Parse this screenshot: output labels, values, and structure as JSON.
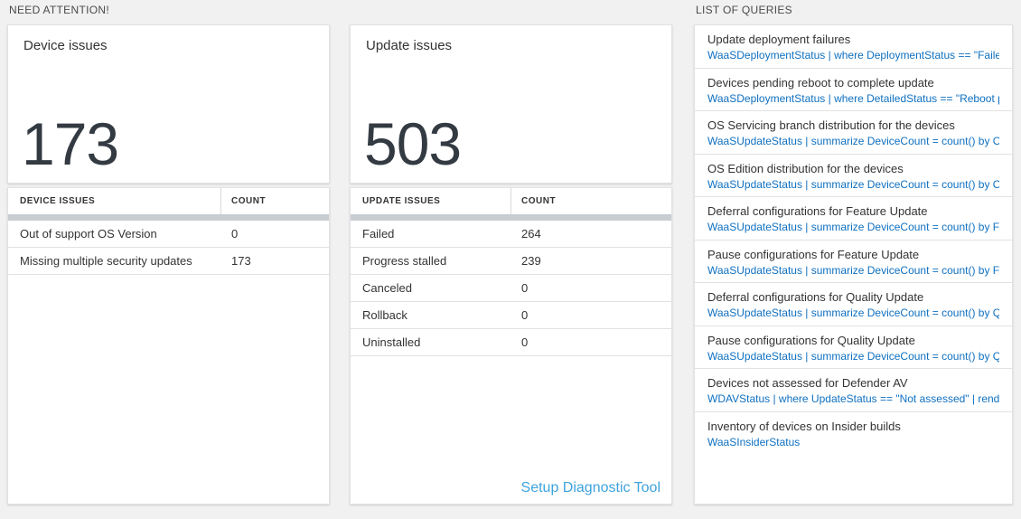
{
  "sections": {
    "need_attention": "NEED ATTENTION!",
    "list_of_queries": "LIST OF QUERIES"
  },
  "device_card": {
    "title": "Device issues",
    "count": "173"
  },
  "update_card": {
    "title": "Update issues",
    "count": "503"
  },
  "device_table": {
    "headers": [
      "DEVICE ISSUES",
      "COUNT"
    ],
    "rows": [
      {
        "label": "Out of support OS Version",
        "count": "0"
      },
      {
        "label": "Missing multiple security updates",
        "count": "173"
      }
    ]
  },
  "update_table": {
    "headers": [
      "UPDATE ISSUES",
      "COUNT"
    ],
    "rows": [
      {
        "label": "Failed",
        "count": "264"
      },
      {
        "label": "Progress stalled",
        "count": "239"
      },
      {
        "label": "Canceled",
        "count": "0"
      },
      {
        "label": "Rollback",
        "count": "0"
      },
      {
        "label": "Uninstalled",
        "count": "0"
      }
    ],
    "link": "Setup Diagnostic Tool"
  },
  "queries": {
    "items": [
      {
        "title": "Update deployment failures",
        "query": "WaaSDeploymentStatus | where DeploymentStatus == \"Failed\" |..."
      },
      {
        "title": "Devices pending reboot to complete update",
        "query": "WaaSDeploymentStatus | where DetailedStatus == \"Reboot pend..."
      },
      {
        "title": "OS Servicing branch distribution for the devices",
        "query": "WaaSUpdateStatus | summarize DeviceCount = count() by OSSer..."
      },
      {
        "title": "OS Edition distribution for the devices",
        "query": "WaaSUpdateStatus | summarize DeviceCount = count() by OSEdit..."
      },
      {
        "title": "Deferral configurations for Feature Update",
        "query": "WaaSUpdateStatus | summarize DeviceCount = count() by Featur..."
      },
      {
        "title": "Pause configurations for Feature Update",
        "query": "WaaSUpdateStatus | summarize DeviceCount = count() by Featur..."
      },
      {
        "title": "Deferral configurations for Quality Update",
        "query": "WaaSUpdateStatus | summarize DeviceCount = count() by Qualit..."
      },
      {
        "title": "Pause configurations for Quality Update",
        "query": "WaaSUpdateStatus | summarize DeviceCount = count() by Qualit..."
      },
      {
        "title": "Devices not assessed for Defender AV",
        "query": "WDAVStatus | where UpdateStatus == \"Not assessed\" | render ta..."
      },
      {
        "title": "Inventory of devices on Insider builds",
        "query": "WaaSInsiderStatus"
      }
    ]
  },
  "colors": {
    "query_blue": "#0f70c0",
    "link_blue": "#3ea2dc",
    "number_dark": "#333a42",
    "bar_gray": "#c8cdd2"
  }
}
